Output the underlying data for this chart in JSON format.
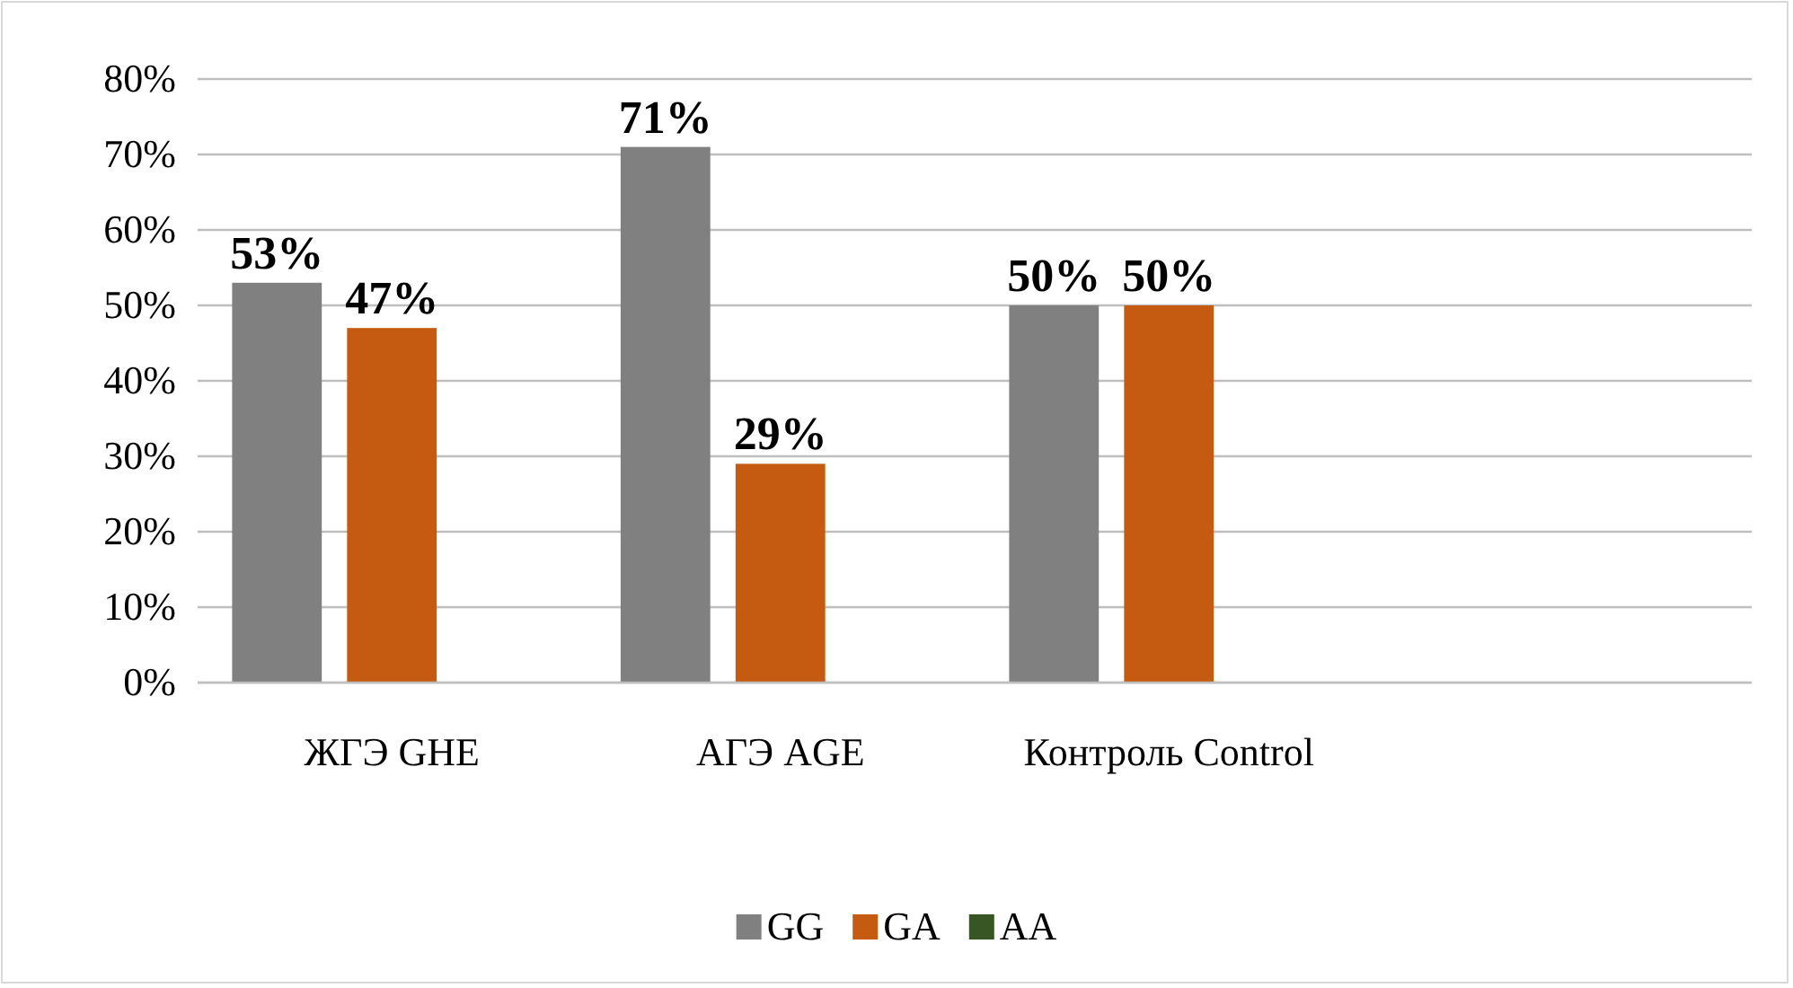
{
  "chart_data": {
    "type": "bar",
    "categories": [
      "ЖГЭ GHE",
      "АГЭ AGE",
      "Контроль Control",
      null
    ],
    "series": [
      {
        "name": "GG",
        "color": "#808080",
        "values": [
          53,
          71,
          50,
          null
        ],
        "value_labels": [
          "53%",
          "71%",
          "50%",
          null
        ]
      },
      {
        "name": "GA",
        "color": "#c55a11",
        "values": [
          47,
          29,
          50,
          null
        ],
        "value_labels": [
          "47%",
          "29%",
          "50%",
          null
        ]
      },
      {
        "name": "AA",
        "color": "#375623",
        "values": [
          null,
          null,
          null,
          null
        ]
      }
    ],
    "ylim": [
      0,
      80
    ],
    "yticks": [
      {
        "value": 0,
        "label": "0%"
      },
      {
        "value": 10,
        "label": "10%"
      },
      {
        "value": 20,
        "label": "20%"
      },
      {
        "value": 30,
        "label": "30%"
      },
      {
        "value": 40,
        "label": "40%"
      },
      {
        "value": 50,
        "label": "50%"
      },
      {
        "value": 60,
        "label": "60%"
      },
      {
        "value": 70,
        "label": "70%"
      },
      {
        "value": 80,
        "label": "80%"
      }
    ],
    "grid": "y",
    "legend": "bottom"
  }
}
